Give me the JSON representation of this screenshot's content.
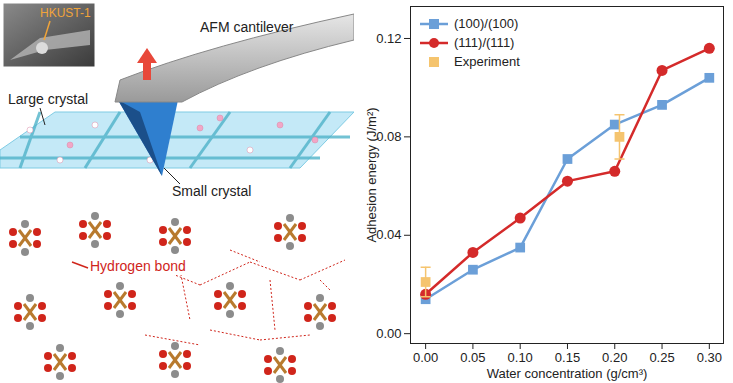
{
  "chart_data": {
    "type": "line",
    "x_label": "Water concentration (g/cm³)",
    "y_label": "Adhesion energy (J/m²)",
    "xlim": [
      -0.016,
      0.315
    ],
    "ylim": [
      -0.004,
      0.133
    ],
    "xticks": [
      {
        "value": 0,
        "label": "0.00"
      },
      0.05,
      {
        "value": 0.1,
        "label": "0.10"
      },
      0.15,
      {
        "value": 0.2,
        "label": "0.20"
      },
      0.25,
      {
        "value": 0.3,
        "label": "0.30"
      }
    ],
    "yticks": [
      {
        "value": 0,
        "label": "0.00"
      },
      0.04,
      0.08,
      0.12
    ],
    "legend": "upper left",
    "series": [
      {
        "name": "(100)/(100)",
        "type": "line",
        "color": "#6b9fd8",
        "marker": "square",
        "x": [
          0,
          0.05,
          0.1,
          0.15,
          0.2,
          0.25,
          0.3
        ],
        "values": [
          0.014,
          0.026,
          0.035,
          0.071,
          0.085,
          0.093,
          0.104
        ]
      },
      {
        "name": "(111)/(111)",
        "type": "line",
        "color": "#d42a2a",
        "marker": "circle",
        "x": [
          0,
          0.05,
          0.1,
          0.15,
          0.2,
          0.25,
          0.3
        ],
        "values": [
          0.016,
          0.033,
          0.047,
          0.062,
          0.066,
          0.107,
          0.116
        ]
      },
      {
        "name": "Experiment",
        "type": "scatter",
        "color": "#f5c46e",
        "marker": "square",
        "x": [
          0,
          0.205
        ],
        "values": [
          0.021,
          0.08
        ],
        "error": [
          0.006,
          0.009
        ]
      }
    ]
  },
  "diagram": {
    "inset_label": "HKUST-1",
    "cantilever": "AFM cantilever",
    "large_crystal": "Large crystal",
    "small_crystal": "Small crystal",
    "hydrogen_bond": "Hydrogen bond"
  }
}
